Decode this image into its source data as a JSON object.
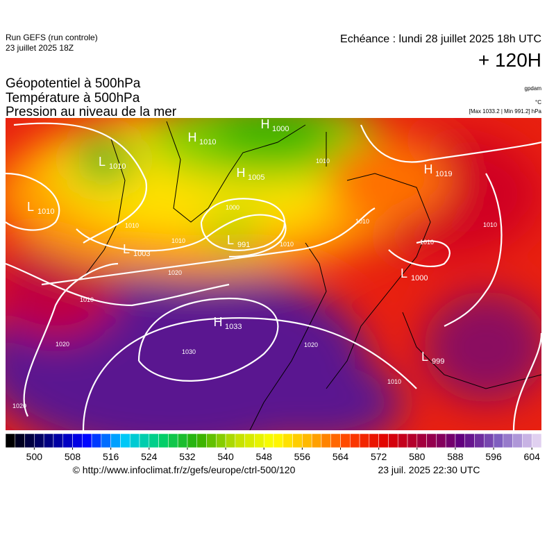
{
  "header": {
    "run": "Run GEFS (run controle)",
    "run_date": "23 juillet 2025 18Z",
    "valid": "Echéance : lundi 28 juillet 2025 18h UTC",
    "lead": "+ 120H"
  },
  "fields": [
    "Géopotentiel à 500hPa",
    "Température à 500hPa",
    "Pression au niveau de la mer"
  ],
  "units": [
    "gpdam",
    "°C",
    "[Max 1033.2 | Min 991.2] hPa"
  ],
  "map": {
    "centers": [
      {
        "type": "L",
        "value": "1010"
      },
      {
        "type": "H",
        "value": "1010"
      },
      {
        "type": "H",
        "value": "1000"
      },
      {
        "type": "H",
        "value": "1005"
      },
      {
        "type": "L",
        "value": "1010"
      },
      {
        "type": "L",
        "value": "1003"
      },
      {
        "type": "L",
        "value": "991"
      },
      {
        "type": "H",
        "value": "1019"
      },
      {
        "type": "L",
        "value": "1000"
      },
      {
        "type": "H",
        "value": "1033"
      },
      {
        "type": "L",
        "value": "999"
      }
    ],
    "isobar_labels": [
      "1020",
      "1010",
      "1020",
      "1030",
      "1020",
      "1020",
      "1010",
      "1010",
      "1010",
      "1010",
      "1010",
      "1010",
      "1000",
      "1010",
      "1010"
    ]
  },
  "colorbar": {
    "range": [
      494,
      606
    ],
    "step": 2,
    "stops": [
      "#000000",
      "#000080",
      "#0000ff",
      "#00c8ff",
      "#00d070",
      "#30b000",
      "#c0e000",
      "#ffff00",
      "#ffb000",
      "#ff4000",
      "#e00000",
      "#a00040",
      "#600080",
      "#8060c0",
      "#e0d0f0"
    ],
    "ticks": [
      500,
      508,
      516,
      524,
      532,
      540,
      548,
      556,
      564,
      572,
      580,
      588,
      596,
      604
    ]
  },
  "footer": {
    "source": "© http://www.infoclimat.fr/z/gefs/europe/ctrl-500/120",
    "issued": "23 juil. 2025 22:30 UTC"
  }
}
